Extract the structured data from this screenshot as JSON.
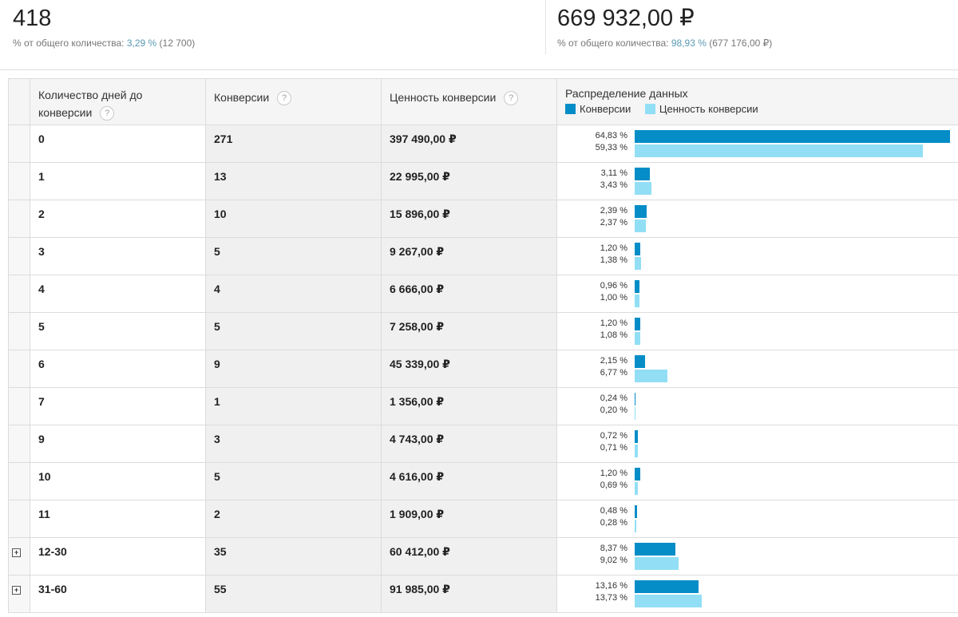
{
  "summary": {
    "conversions": {
      "value": "418",
      "label_prefix": "% от общего количества:",
      "pct": "3,29 %",
      "total": "(12 700)"
    },
    "value": {
      "value": "669 932,00 ₽",
      "label_prefix": "% от общего количества:",
      "pct": "98,93 %",
      "total": "(677 176,00 ₽)"
    }
  },
  "table": {
    "headers": {
      "days_line1": "Количество дней до",
      "days_line2": "конверсии",
      "conversions": "Конверсии",
      "conv_value": "Ценность конверсии",
      "distribution": "Распределение данных",
      "help": "?"
    },
    "legend": {
      "conversions": "Конверсии",
      "conv_value": "Ценность конверсии"
    },
    "colors": {
      "conversions": "#058dc7",
      "conv_value": "#92dff5"
    },
    "expand_glyph": "+",
    "rows": [
      {
        "days": "0",
        "conversions": "271",
        "value": "397 490,00 ₽",
        "conv_pct_label": "64,83 %",
        "value_pct_label": "59,33 %",
        "conv_pct": 64.83,
        "value_pct": 59.33,
        "expandable": false
      },
      {
        "days": "1",
        "conversions": "13",
        "value": "22 995,00 ₽",
        "conv_pct_label": "3,11 %",
        "value_pct_label": "3,43 %",
        "conv_pct": 3.11,
        "value_pct": 3.43,
        "expandable": false
      },
      {
        "days": "2",
        "conversions": "10",
        "value": "15 896,00 ₽",
        "conv_pct_label": "2,39 %",
        "value_pct_label": "2,37 %",
        "conv_pct": 2.39,
        "value_pct": 2.37,
        "expandable": false
      },
      {
        "days": "3",
        "conversions": "5",
        "value": "9 267,00 ₽",
        "conv_pct_label": "1,20 %",
        "value_pct_label": "1,38 %",
        "conv_pct": 1.2,
        "value_pct": 1.38,
        "expandable": false
      },
      {
        "days": "4",
        "conversions": "4",
        "value": "6 666,00 ₽",
        "conv_pct_label": "0,96 %",
        "value_pct_label": "1,00 %",
        "conv_pct": 0.96,
        "value_pct": 1.0,
        "expandable": false
      },
      {
        "days": "5",
        "conversions": "5",
        "value": "7 258,00 ₽",
        "conv_pct_label": "1,20 %",
        "value_pct_label": "1,08 %",
        "conv_pct": 1.2,
        "value_pct": 1.08,
        "expandable": false
      },
      {
        "days": "6",
        "conversions": "9",
        "value": "45 339,00 ₽",
        "conv_pct_label": "2,15 %",
        "value_pct_label": "6,77 %",
        "conv_pct": 2.15,
        "value_pct": 6.77,
        "expandable": false
      },
      {
        "days": "7",
        "conversions": "1",
        "value": "1 356,00 ₽",
        "conv_pct_label": "0,24 %",
        "value_pct_label": "0,20 %",
        "conv_pct": 0.24,
        "value_pct": 0.2,
        "expandable": false
      },
      {
        "days": "9",
        "conversions": "3",
        "value": "4 743,00 ₽",
        "conv_pct_label": "0,72 %",
        "value_pct_label": "0,71 %",
        "conv_pct": 0.72,
        "value_pct": 0.71,
        "expandable": false
      },
      {
        "days": "10",
        "conversions": "5",
        "value": "4 616,00 ₽",
        "conv_pct_label": "1,20 %",
        "value_pct_label": "0,69 %",
        "conv_pct": 1.2,
        "value_pct": 0.69,
        "expandable": false
      },
      {
        "days": "11",
        "conversions": "2",
        "value": "1 909,00 ₽",
        "conv_pct_label": "0,48 %",
        "value_pct_label": "0,28 %",
        "conv_pct": 0.48,
        "value_pct": 0.28,
        "expandable": false
      },
      {
        "days": "12-30",
        "conversions": "35",
        "value": "60 412,00 ₽",
        "conv_pct_label": "8,37 %",
        "value_pct_label": "9,02 %",
        "conv_pct": 8.37,
        "value_pct": 9.02,
        "expandable": true
      },
      {
        "days": "31-60",
        "conversions": "55",
        "value": "91 985,00 ₽",
        "conv_pct_label": "13,16 %",
        "value_pct_label": "13,73 %",
        "conv_pct": 13.16,
        "value_pct": 13.73,
        "expandable": true
      }
    ]
  }
}
